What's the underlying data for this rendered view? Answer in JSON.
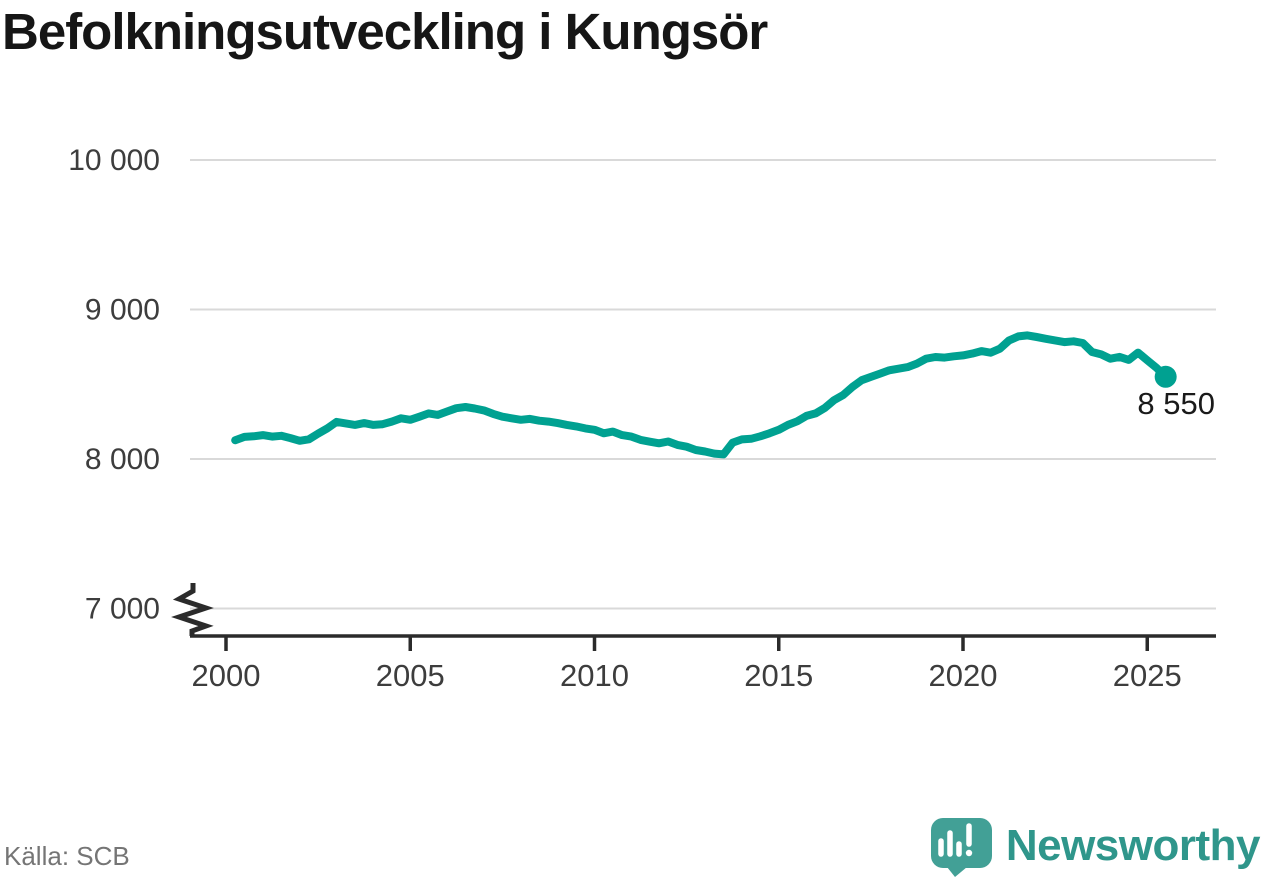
{
  "title": "Befolkningsutveckling i Kungsör",
  "source": "Källa: SCB",
  "branding": {
    "wordmark": "Newsworthy",
    "wordmark_color": "#2f968b",
    "icon_color": "#42a096"
  },
  "chart_data": {
    "type": "line",
    "title": "Befolkningsutveckling i Kungsör",
    "xlabel": "",
    "ylabel": "",
    "grid": "horizontal",
    "axis_break_below": 7000,
    "ylim": [
      7000,
      10000
    ],
    "xlim": [
      2000,
      2026
    ],
    "x_ticks": [
      2000,
      2005,
      2010,
      2015,
      2020,
      2025
    ],
    "x_tick_labels": [
      "2000",
      "2005",
      "2010",
      "2015",
      "2020",
      "2025"
    ],
    "y_ticks": [
      10000,
      9000,
      8000,
      7000
    ],
    "y_tick_labels": [
      "10 000",
      "9 000",
      "8 000",
      "7 000"
    ],
    "line_color": "#00a191",
    "grid_color": "#d9d9d9",
    "axis_color": "#2b2b2b",
    "tick_label_color": "#3d3d3d",
    "end_label": "8 550",
    "end_value": 8550,
    "series": [
      {
        "name": "Befolkning i Kungsör",
        "x_start": 2000.25,
        "x_step": 0.25,
        "values": [
          8125,
          8148,
          8152,
          8160,
          8150,
          8155,
          8140,
          8122,
          8132,
          8170,
          8205,
          8248,
          8238,
          8228,
          8240,
          8228,
          8233,
          8250,
          8272,
          8262,
          8283,
          8305,
          8295,
          8318,
          8340,
          8348,
          8338,
          8325,
          8302,
          8283,
          8272,
          8262,
          8268,
          8256,
          8250,
          8240,
          8228,
          8218,
          8205,
          8195,
          8172,
          8183,
          8160,
          8150,
          8128,
          8116,
          8105,
          8117,
          8094,
          8082,
          8060,
          8050,
          8036,
          8031,
          8110,
          8131,
          8135,
          8152,
          8172,
          8195,
          8228,
          8252,
          8288,
          8305,
          8342,
          8393,
          8428,
          8482,
          8527,
          8549,
          8571,
          8593,
          8604,
          8615,
          8638,
          8671,
          8682,
          8678,
          8687,
          8693,
          8705,
          8722,
          8711,
          8738,
          8793,
          8820,
          8827,
          8816,
          8804,
          8793,
          8782,
          8787,
          8776,
          8716,
          8700,
          8671,
          8683,
          8663,
          8712,
          8660,
          8610,
          8550
        ]
      }
    ]
  }
}
